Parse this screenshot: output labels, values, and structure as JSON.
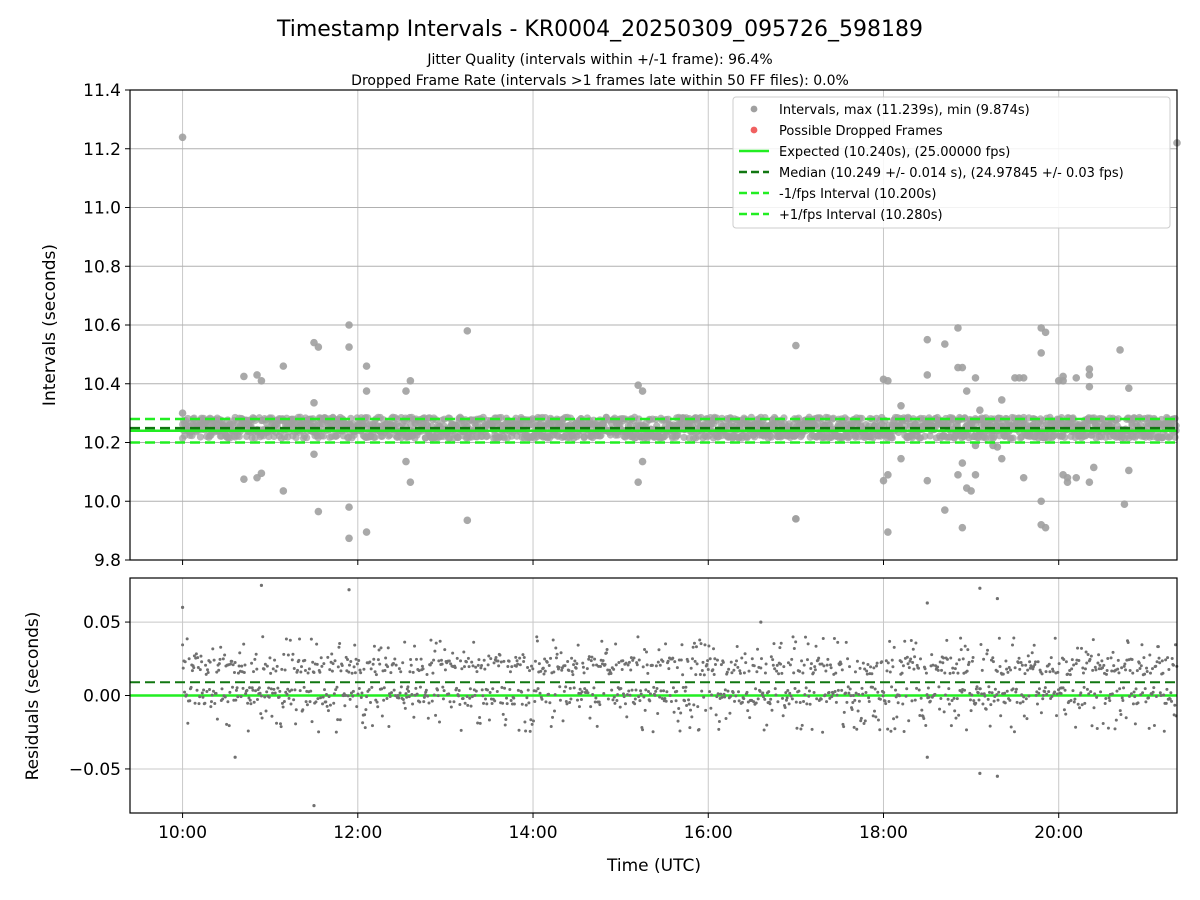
{
  "chart_data": [
    {
      "type": "scatter",
      "title": "Timestamp Intervals - KR0004_20250309_095726_598189",
      "subtitle_lines": [
        "Jitter Quality (intervals within +/-1 frame): 96.4%",
        "Dropped Frame Rate (intervals >1 frames late within 50 FF files): 0.0%"
      ],
      "xlabel": "",
      "ylabel": "Intervals (seconds)",
      "ylim": [
        9.8,
        11.4
      ],
      "xlim_hours": [
        9.4,
        21.35
      ],
      "yticks": [
        9.8,
        10.0,
        10.2,
        10.4,
        10.6,
        10.8,
        11.0,
        11.2,
        11.4
      ],
      "ytick_labels": [
        "9.8",
        "10.0",
        "10.2",
        "10.4",
        "10.6",
        "10.8",
        "11.0",
        "11.2",
        "11.4"
      ],
      "grid": true,
      "legend_position": "top-right",
      "legend": [
        {
          "label": "Intervals, max (11.239s), min (9.874s)",
          "kind": "dot",
          "color": "#a0a0a0"
        },
        {
          "label": "Possible Dropped Frames",
          "kind": "dot",
          "color": "#f06060"
        },
        {
          "label": "Expected (10.240s), (25.00000 fps)",
          "kind": "solid",
          "color": "#22ee22"
        },
        {
          "label": "Median (10.249 +/- 0.014 s), (24.97845 +/- 0.03 fps)",
          "kind": "dashed",
          "color": "#117711"
        },
        {
          "label": "-1/fps Interval (10.200s)",
          "kind": "dashed",
          "color": "#22ee22"
        },
        {
          "label": "+1/fps Interval (10.280s)",
          "kind": "dashed",
          "color": "#22ee22"
        }
      ],
      "reference_lines": {
        "expected": 10.24,
        "median": 10.249,
        "minus_fps": 10.2,
        "plus_fps": 10.28
      },
      "series": [
        {
          "name": "Intervals, max (11.239s), min (9.874s)",
          "x_hours": [
            10.0,
            10.0,
            11.5,
            11.55,
            11.9,
            11.9,
            13.25,
            15.2,
            15.25,
            17.0,
            18.0,
            18.05,
            18.5,
            18.85,
            18.9,
            19.5,
            19.8,
            19.85,
            20.05,
            20.7,
            10.7,
            10.85,
            10.9,
            11.15,
            11.5,
            11.9,
            12.1,
            12.1,
            12.55,
            12.6,
            10.85,
            11.55,
            11.9,
            12.55,
            11.15,
            11.5,
            10.7,
            10.9,
            12.6,
            13.25,
            12.1,
            15.25,
            15.2,
            17.0,
            17.0,
            18.0,
            18.05,
            18.2,
            18.05,
            18.5,
            18.7,
            18.9,
            18.95,
            18.9,
            19.0,
            19.05,
            19.1,
            19.35,
            19.3,
            19.35,
            19.6,
            19.6,
            19.8,
            19.8,
            20.05,
            20.1,
            20.2,
            20.35,
            20.35,
            20.35,
            20.4,
            20.35,
            20.8,
            20.8,
            18.5,
            18.7,
            18.85,
            18.95,
            19.05,
            19.55,
            19.8,
            19.85,
            20.0,
            20.05,
            20.1,
            20.2,
            20.75,
            18.2,
            19.15,
            19.25,
            19.05,
            18.85,
            21.35
          ],
          "y": [
            11.239,
            10.3,
            10.54,
            10.525,
            10.6,
            10.525,
            10.58,
            10.395,
            10.375,
            10.53,
            10.415,
            10.41,
            10.55,
            10.59,
            10.455,
            10.42,
            10.59,
            10.575,
            10.41,
            10.515,
            10.425,
            10.43,
            10.41,
            10.46,
            10.335,
            9.874,
            10.375,
            10.46,
            10.375,
            10.41,
            10.08,
            9.965,
            9.98,
            10.135,
            10.035,
            10.16,
            10.075,
            10.095,
            10.065,
            9.935,
            9.895,
            10.135,
            10.065,
            9.94,
            9.94,
            10.07,
            10.09,
            10.145,
            9.895,
            10.07,
            9.97,
            9.91,
            10.045,
            10.13,
            10.035,
            10.09,
            10.31,
            10.345,
            10.185,
            10.145,
            10.42,
            10.08,
            10.0,
            9.92,
            10.09,
            10.065,
            10.08,
            10.45,
            10.43,
            10.39,
            10.115,
            10.065,
            10.385,
            10.105,
            10.43,
            10.535,
            10.455,
            10.375,
            10.42,
            10.42,
            10.505,
            9.91,
            10.41,
            10.425,
            10.08,
            10.42,
            9.99,
            10.325,
            10.26,
            10.19,
            10.19,
            10.09,
            11.22
          ]
        },
        {
          "name": "Possible Dropped Frames",
          "x_hours": [],
          "y": []
        }
      ]
    },
    {
      "type": "scatter",
      "title": "",
      "xlabel": "Time (UTC)",
      "ylabel": "Residuals (seconds)",
      "ylim": [
        -0.08,
        0.08
      ],
      "yticks": [
        -0.05,
        0.0,
        0.05
      ],
      "ytick_labels": [
        "−0.05",
        "0.00",
        "0.05"
      ],
      "xticks_hours": [
        10,
        12,
        14,
        16,
        18,
        20
      ],
      "xtick_labels": [
        "10:00",
        "12:00",
        "14:00",
        "16:00",
        "18:00",
        "20:00"
      ],
      "grid": true,
      "reference_lines": {
        "zero": 0.0,
        "median_residual": 0.009
      },
      "series": [
        {
          "name": "",
          "x_hours": [
            10.0,
            10.9,
            11.5,
            11.9,
            19.1,
            19.3,
            19.1,
            19.3,
            18.5,
            18.5,
            10.6,
            16.6
          ],
          "y": [
            0.06,
            0.075,
            -0.075,
            0.072,
            0.073,
            0.066,
            -0.053,
            -0.055,
            0.063,
            -0.042,
            -0.042,
            0.05
          ]
        }
      ]
    }
  ]
}
